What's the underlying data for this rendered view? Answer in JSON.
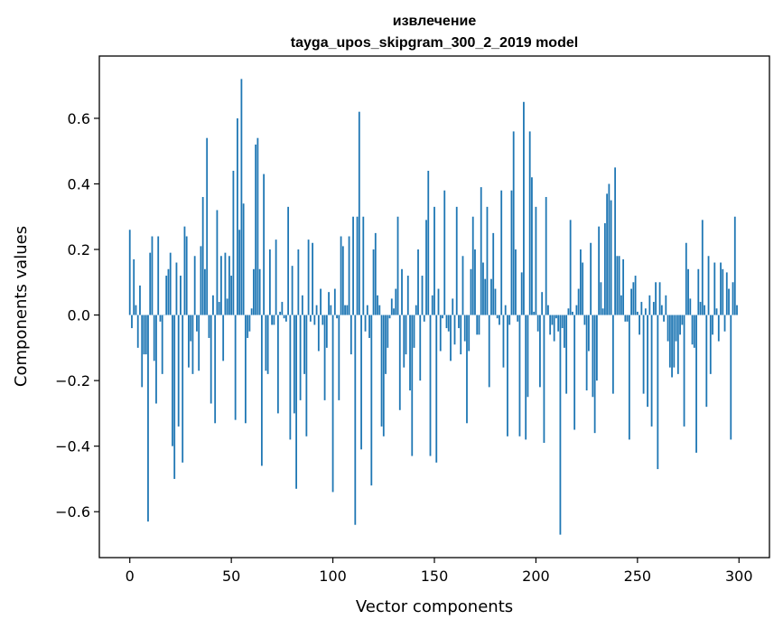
{
  "chart_data": {
    "type": "bar",
    "title": "извлечение",
    "subtitle": "tayga_upos_skipgram_300_2_2019 model",
    "xlabel": "Vector components",
    "ylabel": "Components values",
    "xlim": [
      -15,
      315
    ],
    "ylim": [
      -0.74,
      0.79
    ],
    "x_ticks": [
      0,
      50,
      100,
      150,
      200,
      250,
      300
    ],
    "x_tick_labels": [
      "0",
      "50",
      "100",
      "150",
      "200",
      "250",
      "300"
    ],
    "y_ticks": [
      0.6,
      0.4,
      0.2,
      0.0,
      -0.2,
      -0.4,
      -0.6
    ],
    "y_tick_labels": [
      "0.6",
      "0.4",
      "0.2",
      "0.0",
      "−0.2",
      "−0.4",
      "−0.6"
    ],
    "bar_color": "#1f77b4",
    "grid": false,
    "values": [
      0.26,
      -0.04,
      0.17,
      0.03,
      -0.1,
      0.09,
      -0.22,
      -0.12,
      -0.12,
      -0.63,
      0.19,
      0.24,
      -0.14,
      -0.27,
      0.24,
      -0.02,
      -0.18,
      0,
      0.12,
      0.14,
      0.19,
      -0.4,
      -0.5,
      0.16,
      -0.34,
      0.12,
      -0.45,
      0.27,
      0.24,
      -0.16,
      -0.08,
      -0.18,
      0.18,
      -0.05,
      -0.17,
      0.21,
      0.36,
      0.14,
      0.54,
      -0.07,
      -0.27,
      0.06,
      -0.33,
      0.32,
      0.04,
      0.18,
      -0.14,
      0.19,
      0.05,
      0.18,
      0.12,
      0.44,
      -0.32,
      0.6,
      0.26,
      0.72,
      0.34,
      -0.33,
      -0.07,
      -0.05,
      0.02,
      0.14,
      0.52,
      0.54,
      0.14,
      -0.46,
      0.43,
      -0.17,
      -0.18,
      0.2,
      -0.03,
      -0.03,
      0.23,
      -0.3,
      0.01,
      0.04,
      -0.01,
      -0.02,
      0.33,
      -0.38,
      0.15,
      -0.3,
      -0.53,
      0.2,
      -0.26,
      0.06,
      -0.18,
      -0.37,
      0.23,
      -0.02,
      0.22,
      -0.03,
      0.03,
      -0.11,
      0.08,
      -0.03,
      -0.26,
      -0.1,
      0.07,
      0.03,
      -0.54,
      0.08,
      -0.01,
      -0.26,
      0.24,
      0.21,
      0.03,
      0.03,
      0.24,
      -0.12,
      0.3,
      -0.64,
      0.3,
      0.62,
      -0.41,
      0.3,
      -0.05,
      0.03,
      -0.07,
      -0.52,
      0.2,
      0.25,
      0.06,
      0.03,
      -0.34,
      -0.37,
      -0.18,
      -0.1,
      -0.01,
      0.05,
      0.02,
      0.08,
      0.3,
      -0.29,
      0.14,
      -0.16,
      -0.12,
      0.12,
      -0.23,
      -0.43,
      -0.1,
      0.03,
      0.2,
      -0.2,
      0.12,
      -0.02,
      0.29,
      0.44,
      -0.43,
      0.06,
      0.33,
      -0.45,
      0.08,
      -0.11,
      -0.01,
      0.38,
      -0.04,
      -0.05,
      -0.14,
      0.05,
      -0.09,
      0.33,
      -0.04,
      -0.12,
      0.18,
      -0.08,
      -0.33,
      -0.11,
      0.14,
      0.3,
      0.2,
      -0.06,
      -0.06,
      0.39,
      0.16,
      0.11,
      0.33,
      -0.22,
      0.11,
      0.25,
      0.08,
      -0.01,
      -0.03,
      0.38,
      -0.16,
      0.03,
      -0.37,
      -0.03,
      0.38,
      0.56,
      0.2,
      -0.02,
      -0.37,
      0.13,
      0.65,
      -0.38,
      -0.25,
      0.56,
      0.42,
      0.01,
      0.33,
      -0.05,
      -0.22,
      0.07,
      -0.39,
      0.36,
      0.03,
      -0.06,
      -0.03,
      -0.08,
      -0.01,
      -0.05,
      -0.67,
      -0.04,
      -0.1,
      -0.24,
      0.02,
      0.29,
      0.01,
      -0.35,
      0.03,
      0.08,
      0.2,
      0.16,
      -0.03,
      -0.23,
      -0.11,
      0.22,
      -0.25,
      -0.36,
      -0.2,
      0.27,
      0.1,
      0.02,
      0.28,
      0.37,
      0.4,
      0.35,
      -0.24,
      0.45,
      0.18,
      0.18,
      0.06,
      0.17,
      -0.02,
      -0.02,
      -0.38,
      0.08,
      0.1,
      0.12,
      0.01,
      -0.06,
      0.04,
      -0.24,
      0.02,
      -0.28,
      0.06,
      -0.34,
      0.04,
      0.1,
      -0.47,
      0.1,
      0.03,
      -0.02,
      0.06,
      -0.08,
      -0.16,
      -0.19,
      -0.16,
      -0.08,
      -0.18,
      -0.06,
      -0.03,
      -0.34,
      0.22,
      0.14,
      0.05,
      -0.09,
      -0.1,
      -0.42,
      0.14,
      0.04,
      0.29,
      0.03,
      -0.28,
      0.18,
      -0.18,
      -0.06,
      0.16,
      0.02,
      -0.08,
      0.16,
      0.14,
      -0.05,
      0.13,
      0.08,
      -0.38,
      0.1,
      0.3,
      0.03
    ]
  }
}
